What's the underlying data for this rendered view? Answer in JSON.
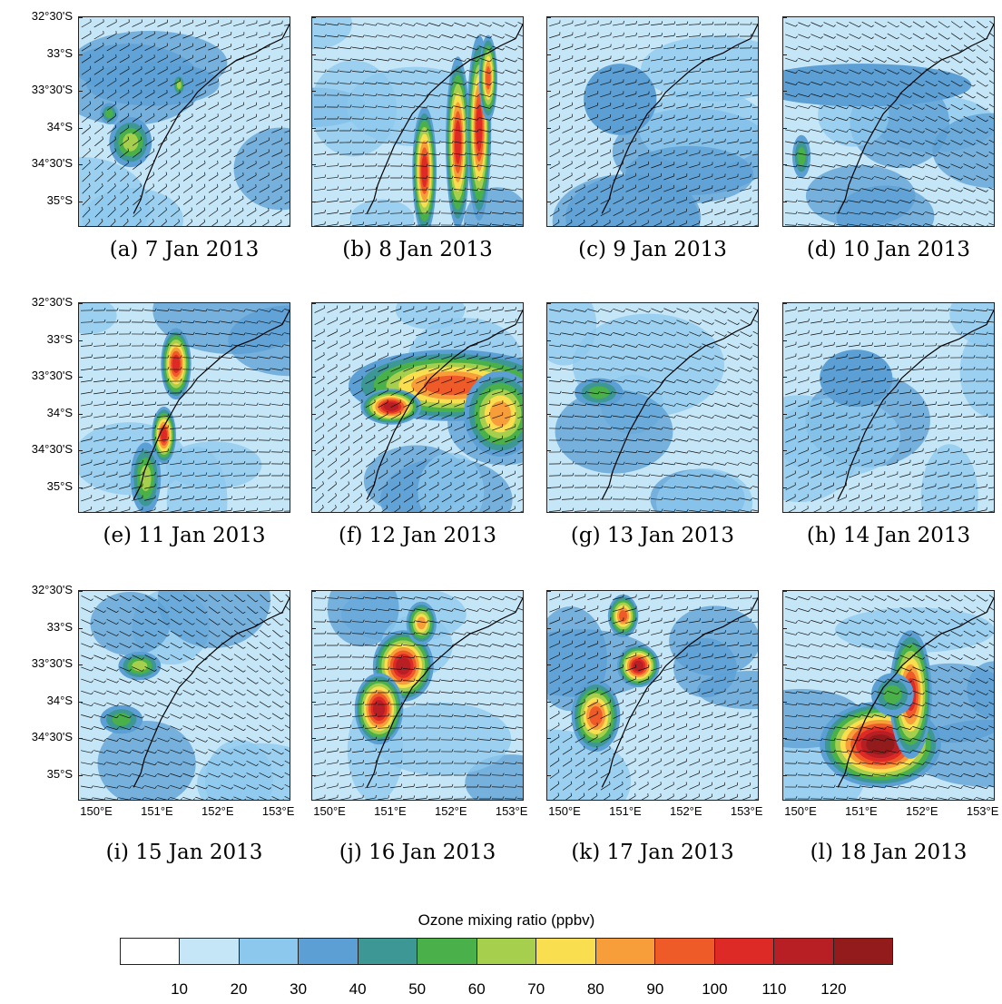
{
  "latitude_labels": [
    "32°30'S",
    "33°S",
    "33°30'S",
    "34°S",
    "34°30'S",
    "35°S"
  ],
  "longitude_labels": [
    "150°E",
    "151°E",
    "152°E",
    "153°E"
  ],
  "panels": [
    {
      "caption": "(a) 7 Jan 2013",
      "hotspots": [
        {
          "lon": 150.55,
          "lat": -34.2,
          "level": 6,
          "w": 0.35,
          "h": 0.35
        },
        {
          "lon": 151.35,
          "lat": -33.4,
          "level": 6,
          "w": 0.1,
          "h": 0.15
        },
        {
          "lon": 150.2,
          "lat": -33.8,
          "level": 5,
          "w": 0.15,
          "h": 0.15
        }
      ]
    },
    {
      "caption": "(b) 8 Jan 2013",
      "hotspots": [
        {
          "lon": 151.55,
          "lat": -34.6,
          "level": 10,
          "w": 0.2,
          "h": 0.9
        },
        {
          "lon": 152.1,
          "lat": -34.2,
          "level": 10,
          "w": 0.2,
          "h": 1.2
        },
        {
          "lon": 152.45,
          "lat": -34.0,
          "level": 10,
          "w": 0.2,
          "h": 1.3
        },
        {
          "lon": 152.6,
          "lat": -33.3,
          "level": 9,
          "w": 0.15,
          "h": 0.6
        }
      ]
    },
    {
      "caption": "(c) 9 Jan 2013",
      "hotspots": [
        {
          "lon": 150.9,
          "lat": -33.6,
          "level": 3,
          "w": 0.6,
          "h": 0.5
        }
      ]
    },
    {
      "caption": "(d) 10 Jan 2013",
      "hotspots": [
        {
          "lon": 151.0,
          "lat": -33.4,
          "level": 3,
          "w": 1.8,
          "h": 0.3
        },
        {
          "lon": 150.0,
          "lat": -34.4,
          "level": 5,
          "w": 0.15,
          "h": 0.3
        }
      ]
    },
    {
      "caption": "(e) 11 Jan 2013",
      "hotspots": [
        {
          "lon": 151.3,
          "lat": -33.3,
          "level": 10,
          "w": 0.25,
          "h": 0.5
        },
        {
          "lon": 151.1,
          "lat": -34.3,
          "level": 10,
          "w": 0.2,
          "h": 0.4
        },
        {
          "lon": 150.8,
          "lat": -34.9,
          "level": 6,
          "w": 0.25,
          "h": 0.5
        }
      ]
    },
    {
      "caption": "(f) 12 Jan 2013",
      "hotspots": [
        {
          "lon": 152.0,
          "lat": -33.6,
          "level": 9,
          "w": 1.7,
          "h": 0.5
        },
        {
          "lon": 151.0,
          "lat": -33.9,
          "level": 11,
          "w": 0.5,
          "h": 0.25
        },
        {
          "lon": 152.8,
          "lat": -34.0,
          "level": 8,
          "w": 0.6,
          "h": 0.6
        }
      ]
    },
    {
      "caption": "(g) 13 Jan 2013",
      "hotspots": [
        {
          "lon": 150.55,
          "lat": -33.7,
          "level": 5,
          "w": 0.4,
          "h": 0.2
        }
      ]
    },
    {
      "caption": "(h) 14 Jan 2013",
      "hotspots": [
        {
          "lon": 150.9,
          "lat": -33.5,
          "level": 3,
          "w": 0.6,
          "h": 0.4
        }
      ]
    },
    {
      "caption": "(i) 15 Jan 2013",
      "hotspots": [
        {
          "lon": 150.7,
          "lat": -33.5,
          "level": 6,
          "w": 0.35,
          "h": 0.2
        },
        {
          "lon": 150.4,
          "lat": -34.25,
          "level": 5,
          "w": 0.35,
          "h": 0.2
        }
      ]
    },
    {
      "caption": "(j) 16 Jan 2013",
      "hotspots": [
        {
          "lon": 151.2,
          "lat": -33.5,
          "level": 11,
          "w": 0.5,
          "h": 0.5
        },
        {
          "lon": 150.8,
          "lat": -34.1,
          "level": 11,
          "w": 0.4,
          "h": 0.5
        },
        {
          "lon": 151.5,
          "lat": -32.9,
          "level": 8,
          "w": 0.25,
          "h": 0.3
        }
      ]
    },
    {
      "caption": "(k) 17 Jan 2013",
      "hotspots": [
        {
          "lon": 151.2,
          "lat": -33.5,
          "level": 11,
          "w": 0.35,
          "h": 0.3
        },
        {
          "lon": 150.5,
          "lat": -34.2,
          "level": 9,
          "w": 0.4,
          "h": 0.5
        },
        {
          "lon": 150.95,
          "lat": -32.8,
          "level": 9,
          "w": 0.25,
          "h": 0.3
        }
      ]
    },
    {
      "caption": "(l) 18 Jan 2013",
      "hotspots": [
        {
          "lon": 151.3,
          "lat": -34.6,
          "level": 12,
          "w": 1.0,
          "h": 0.6
        },
        {
          "lon": 151.8,
          "lat": -33.9,
          "level": 10,
          "w": 0.35,
          "h": 0.9
        },
        {
          "lon": 151.5,
          "lat": -33.9,
          "level": 5,
          "w": 0.35,
          "h": 0.3
        }
      ]
    }
  ],
  "colorbar": {
    "title": "Ozone mixing ratio  (ppbv)",
    "labels": [
      "10",
      "20",
      "30",
      "40",
      "50",
      "60",
      "70",
      "80",
      "90",
      "100",
      "110",
      "120"
    ],
    "colors": [
      "#ffffff",
      "#c5e6f7",
      "#8cc8ed",
      "#5b9fd4",
      "#3d9795",
      "#4ab04a",
      "#a6cf4e",
      "#f9df4f",
      "#f79d3a",
      "#ee5a28",
      "#dd2a27",
      "#b81f24",
      "#941b1c"
    ]
  },
  "coastline": [
    [
      153.2,
      -32.5
    ],
    [
      153.05,
      -32.75
    ],
    [
      152.8,
      -32.85
    ],
    [
      152.6,
      -32.95
    ],
    [
      152.3,
      -33.05
    ],
    [
      152.05,
      -33.2
    ],
    [
      151.85,
      -33.35
    ],
    [
      151.65,
      -33.5
    ],
    [
      151.55,
      -33.62
    ],
    [
      151.35,
      -33.8
    ],
    [
      151.25,
      -33.95
    ],
    [
      151.15,
      -34.1
    ],
    [
      151.05,
      -34.25
    ],
    [
      150.95,
      -34.45
    ],
    [
      150.85,
      -34.65
    ],
    [
      150.78,
      -34.8
    ],
    [
      150.72,
      -35.0
    ],
    [
      150.6,
      -35.2
    ]
  ]
}
